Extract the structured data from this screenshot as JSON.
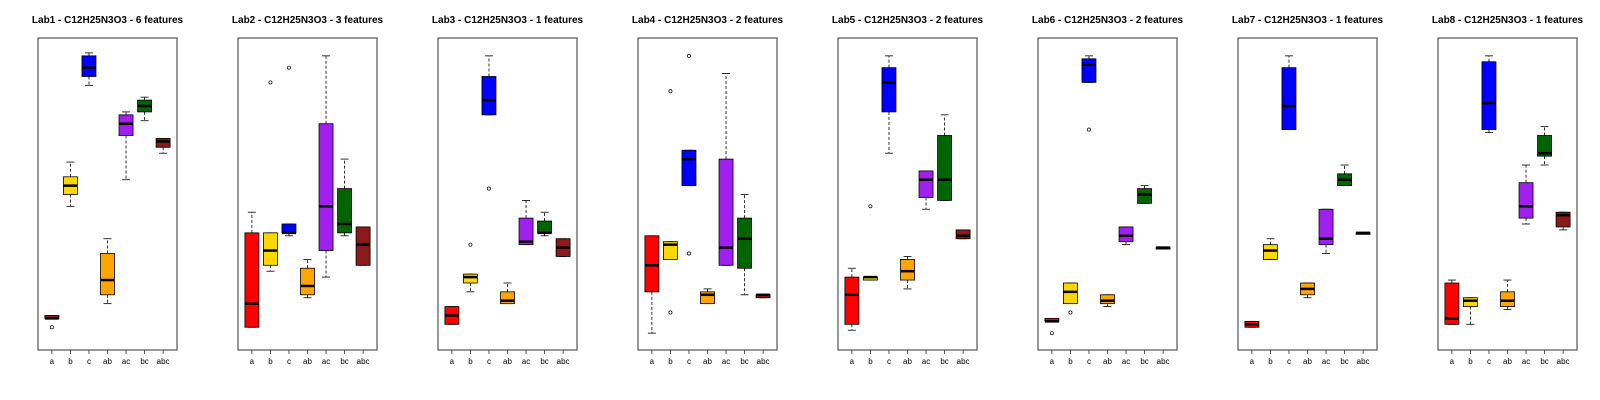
{
  "chart_data": {
    "type": "boxplot",
    "groups": [
      "a",
      "b",
      "c",
      "ab",
      "ac",
      "bc",
      "abc"
    ],
    "colors": {
      "a": "#ff0000",
      "b": "#ffd700",
      "c": "#0000ff",
      "ab": "#ffa500",
      "ac": "#a020f0",
      "bc": "#006400",
      "abc": "#8b1a1a"
    },
    "panels": [
      {
        "title": "Lab1 - C12H25N3O3 - 6 features",
        "boxes": [
          null,
          {
            "lw": 46,
            "q1": 50,
            "med": 53,
            "q3": 56,
            "uw": 61,
            "out": []
          },
          {
            "lw": 87,
            "q1": 90,
            "med": 93,
            "q3": 97,
            "uw": 98,
            "out": []
          },
          {
            "lw": 13,
            "q1": 16,
            "med": 21,
            "q3": 30,
            "uw": 35,
            "out": []
          },
          {
            "lw": 55,
            "q1": 70,
            "med": 74,
            "q3": 77,
            "uw": 78,
            "out": []
          },
          {
            "lw": 75,
            "q1": 78,
            "med": 80,
            "q3": 82,
            "uw": 83,
            "out": []
          },
          {
            "lw": 64,
            "q1": 66,
            "med": 68,
            "q3": 69,
            "uw": 69,
            "out": []
          }
        ],
        "abc_overlay": {
          "lw": 8,
          "q1": 8,
          "med": 8,
          "q3": 9,
          "uw": 9,
          "out": [
            5
          ]
        }
      },
      {
        "title": "Lab2 - C12H25N3O3 - 3 features",
        "boxes": [
          {
            "lw": 5,
            "q1": 5,
            "med": 13,
            "q3": 37,
            "uw": 44,
            "out": []
          },
          {
            "lw": 24,
            "q1": 26,
            "med": 31,
            "q3": 37,
            "uw": 37,
            "out": [
              88
            ]
          },
          {
            "lw": 36,
            "q1": 37,
            "med": 37,
            "q3": 40,
            "uw": 40,
            "out": [
              93
            ]
          },
          {
            "lw": 15,
            "q1": 16,
            "med": 19,
            "q3": 25,
            "uw": 28,
            "out": []
          },
          {
            "lw": 22,
            "q1": 31,
            "med": 46,
            "q3": 74,
            "uw": 97,
            "out": []
          },
          {
            "lw": 36,
            "q1": 37,
            "med": 40,
            "q3": 52,
            "uw": 62,
            "out": []
          },
          {
            "lw": 26,
            "q1": 26,
            "med": 33,
            "q3": 39,
            "uw": 39,
            "out": []
          }
        ]
      },
      {
        "title": "Lab3 - C12H25N3O3 - 1 features",
        "boxes": [
          {
            "lw": 6,
            "q1": 6,
            "med": 9,
            "q3": 12,
            "uw": 12,
            "out": []
          },
          {
            "lw": 17,
            "q1": 20,
            "med": 22,
            "q3": 23,
            "uw": 23,
            "out": [
              33
            ]
          },
          {
            "lw": 77,
            "q1": 77,
            "med": 82,
            "q3": 90,
            "uw": 97,
            "out": [
              52
            ]
          },
          {
            "lw": 13,
            "q1": 13,
            "med": 14,
            "q3": 17,
            "uw": 20,
            "out": []
          },
          {
            "lw": 33,
            "q1": 33,
            "med": 34,
            "q3": 42,
            "uw": 48,
            "out": []
          },
          {
            "lw": 36,
            "q1": 37,
            "med": 37,
            "q3": 41,
            "uw": 44,
            "out": []
          },
          {
            "lw": 29,
            "q1": 29,
            "med": 32,
            "q3": 35,
            "uw": 35,
            "out": []
          }
        ]
      },
      {
        "title": "Lab4 - C12H25N3O3 - 2 features",
        "boxes": [
          {
            "lw": 3,
            "q1": 17,
            "med": 26,
            "q3": 36,
            "uw": 36,
            "out": []
          },
          {
            "lw": 30,
            "q1": 28,
            "med": 33,
            "q3": 34,
            "uw": 34,
            "out": [
              85,
              10
            ]
          },
          {
            "lw": 53,
            "q1": 53,
            "med": 62,
            "q3": 65,
            "uw": 65,
            "out": [
              97,
              30
            ]
          },
          {
            "lw": 13,
            "q1": 13,
            "med": 16,
            "q3": 17,
            "uw": 18,
            "out": []
          },
          {
            "lw": 26,
            "q1": 26,
            "med": 32,
            "q3": 62,
            "uw": 91,
            "out": []
          },
          {
            "lw": 16,
            "q1": 25,
            "med": 35,
            "q3": 42,
            "uw": 50,
            "out": []
          },
          {
            "lw": 15,
            "q1": 15,
            "med": 16,
            "q3": 16,
            "uw": 16,
            "out": []
          }
        ]
      },
      {
        "title": "Lab5 - C12H25N3O3 - 2 features",
        "boxes": [
          {
            "lw": 4,
            "q1": 6,
            "med": 16,
            "q3": 22,
            "uw": 25,
            "out": []
          },
          {
            "lw": 21,
            "q1": 21,
            "med": 22,
            "q3": 22,
            "uw": 22,
            "out": [
              46
            ]
          },
          {
            "lw": 64,
            "q1": 78,
            "med": 88,
            "q3": 93,
            "uw": 97,
            "out": []
          },
          {
            "lw": 18,
            "q1": 21,
            "med": 24,
            "q3": 28,
            "uw": 29,
            "out": []
          },
          {
            "lw": 45,
            "q1": 49,
            "med": 55,
            "q3": 58,
            "uw": 58,
            "out": []
          },
          {
            "lw": 48,
            "q1": 48,
            "med": 55,
            "q3": 70,
            "uw": 77,
            "out": []
          },
          {
            "lw": 35,
            "q1": 35,
            "med": 36,
            "q3": 38,
            "uw": 38,
            "out": []
          }
        ]
      },
      {
        "title": "Lab6 - C12H25N3O3 - 2 features",
        "boxes": [
          {
            "lw": 7,
            "q1": 7,
            "med": 7,
            "q3": 8,
            "uw": 8,
            "out": [
              3
            ]
          },
          {
            "lw": 13,
            "q1": 13,
            "med": 17,
            "q3": 20,
            "uw": 20,
            "out": [
              10
            ]
          },
          {
            "lw": 88,
            "q1": 88,
            "med": 94,
            "q3": 96,
            "uw": 97,
            "out": [
              72
            ]
          },
          {
            "lw": 12,
            "q1": 13,
            "med": 14,
            "q3": 16,
            "uw": 16,
            "out": []
          },
          {
            "lw": 33,
            "q1": 34,
            "med": 36,
            "q3": 39,
            "uw": 39,
            "out": []
          },
          {
            "lw": 47,
            "q1": 47,
            "med": 50,
            "q3": 52,
            "uw": 53,
            "out": []
          },
          {
            "lw": 32,
            "q1": 32,
            "med": 32,
            "q3": 32,
            "uw": 32,
            "out": []
          }
        ]
      },
      {
        "title": "Lab7 - C12H25N3O3 - 1 features",
        "boxes": [
          {
            "lw": 5,
            "q1": 5,
            "med": 6,
            "q3": 7,
            "uw": 7,
            "out": []
          },
          {
            "lw": 28,
            "q1": 28,
            "med": 31,
            "q3": 33,
            "uw": 35,
            "out": []
          },
          {
            "lw": 72,
            "q1": 72,
            "med": 80,
            "q3": 93,
            "uw": 97,
            "out": []
          },
          {
            "lw": 15,
            "q1": 16,
            "med": 18,
            "q3": 20,
            "uw": 20,
            "out": []
          },
          {
            "lw": 30,
            "q1": 33,
            "med": 35,
            "q3": 45,
            "uw": 45,
            "out": []
          },
          {
            "lw": 53,
            "q1": 53,
            "med": 55,
            "q3": 57,
            "uw": 60,
            "out": []
          },
          {
            "lw": 37,
            "q1": 37,
            "med": 37,
            "q3": 37,
            "uw": 37,
            "out": []
          }
        ]
      },
      {
        "title": "Lab8 - C12H25N3O3 - 1 features",
        "boxes": [
          {
            "lw": 6,
            "q1": 6,
            "med": 8,
            "q3": 20,
            "uw": 21,
            "out": []
          },
          {
            "lw": 6,
            "q1": 12,
            "med": 14,
            "q3": 15,
            "uw": 15,
            "out": []
          },
          {
            "lw": 71,
            "q1": 72,
            "med": 81,
            "q3": 95,
            "uw": 97,
            "out": []
          },
          {
            "lw": 11,
            "q1": 12,
            "med": 14,
            "q3": 17,
            "uw": 21,
            "out": []
          },
          {
            "lw": 40,
            "q1": 42,
            "med": 46,
            "q3": 54,
            "uw": 60,
            "out": []
          },
          {
            "lw": 60,
            "q1": 63,
            "med": 64,
            "q3": 70,
            "uw": 73,
            "out": []
          },
          {
            "lw": 38,
            "q1": 39,
            "med": 43,
            "q3": 44,
            "uw": 44,
            "out": []
          }
        ]
      }
    ]
  }
}
